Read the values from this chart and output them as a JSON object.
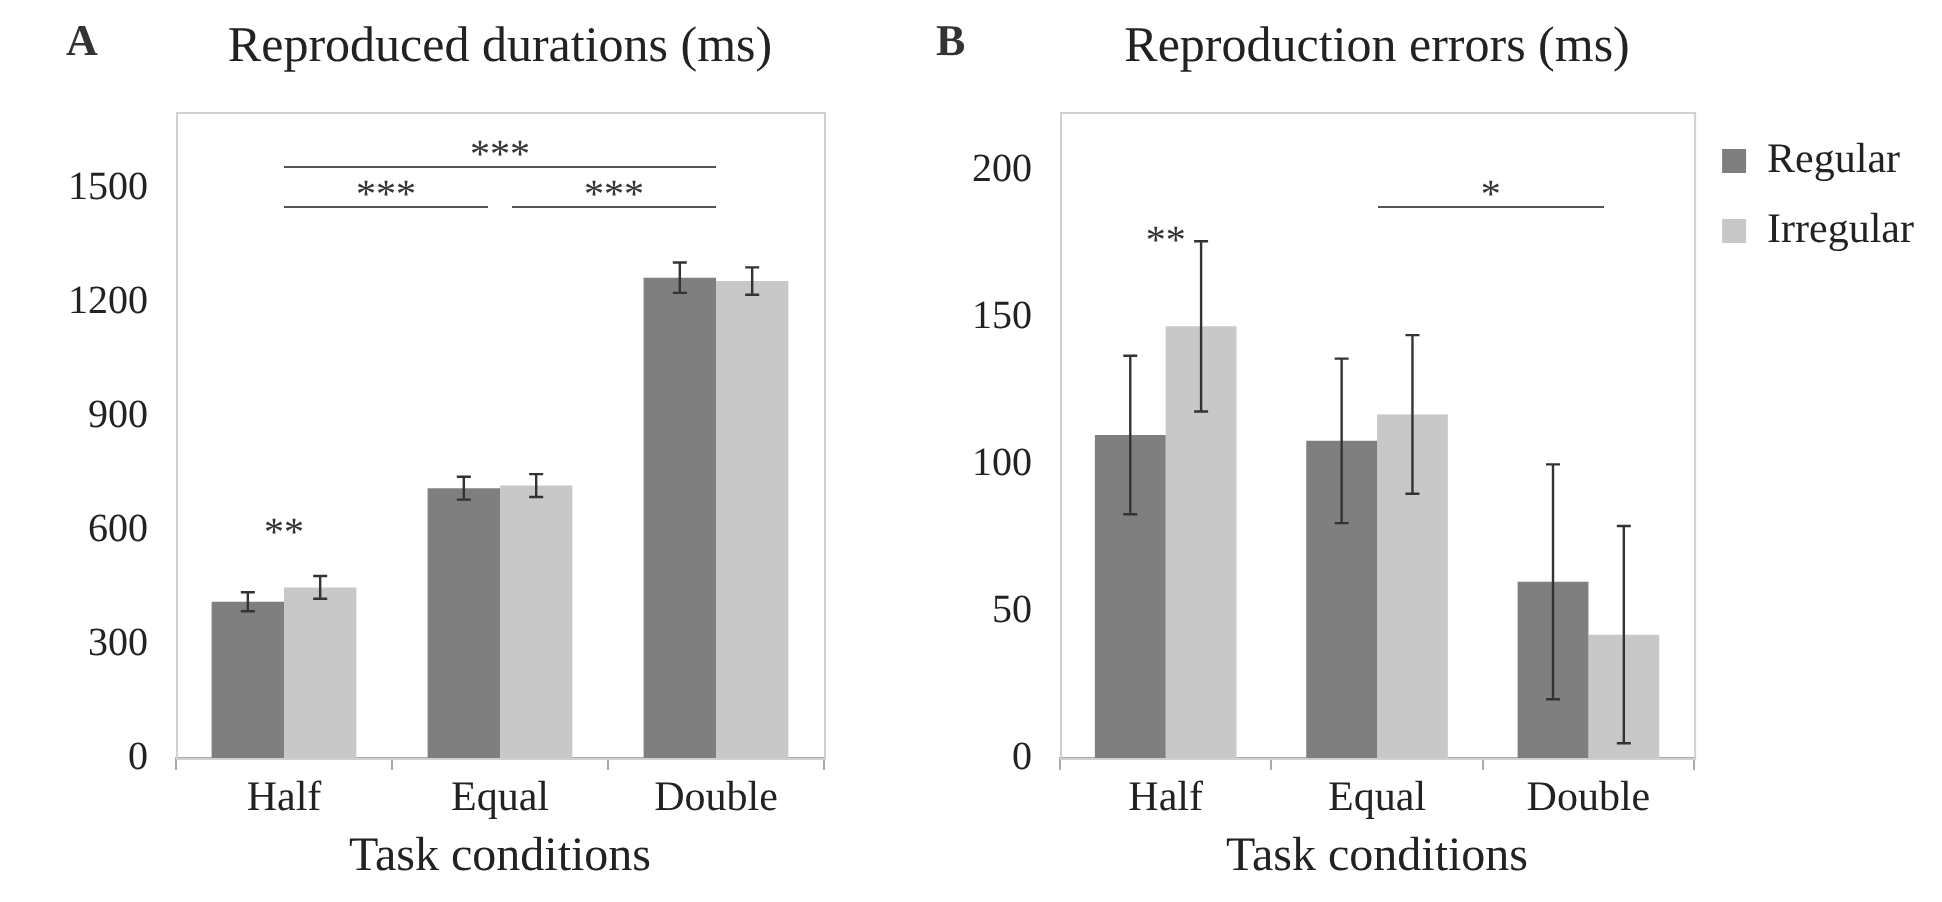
{
  "chart_data": [
    {
      "type": "bar",
      "title": "Reproduced durations (ms)",
      "xlabel": "Task conditions",
      "categories": [
        "Half",
        "Equal",
        "Double"
      ],
      "series": [
        {
          "color": "#7f7f7f",
          "values": [
            411,
            710,
            1264
          ],
          "errors": [
            25,
            30,
            40
          ]
        },
        {
          "color": "#c8c8c8",
          "values": [
            449,
            717,
            1255
          ],
          "errors": [
            30,
            30,
            36
          ]
        }
      ],
      "ylim": [
        0,
        1700
      ],
      "yticks": [
        0,
        300,
        600,
        900,
        1200,
        1500
      ],
      "grid": false,
      "legend": false,
      "annotations": [
        "A",
        "***",
        "***",
        "***",
        "**"
      ]
    },
    {
      "type": "bar",
      "title": "Reproduction errors (ms)",
      "xlabel": "Task conditions",
      "categories": [
        "Half",
        "Equal",
        "Double"
      ],
      "series": [
        {
          "name": "Regular",
          "color": "#7f7f7f",
          "values": [
            110,
            108,
            60
          ],
          "errors": [
            27,
            28,
            40
          ]
        },
        {
          "name": "Irregular",
          "color": "#c8c8c8",
          "values": [
            147,
            117,
            42
          ],
          "errors": [
            29,
            27,
            37
          ]
        }
      ],
      "ylim": [
        0,
        220
      ],
      "yticks": [
        0,
        50,
        100,
        150,
        200
      ],
      "grid": false,
      "legend": "top right",
      "annotations": [
        "B",
        "**",
        "*"
      ]
    }
  ]
}
